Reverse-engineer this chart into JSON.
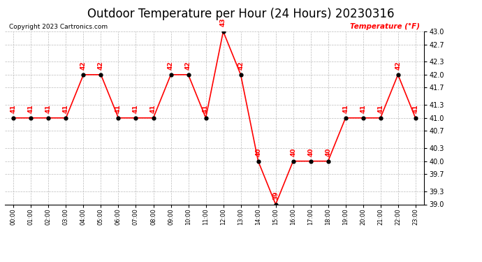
{
  "title": "Outdoor Temperature per Hour (24 Hours) 20230316",
  "copyright_text": "Copyright 2023 Cartronics.com",
  "legend_label": "Temperature (°F)",
  "hours": [
    0,
    1,
    2,
    3,
    4,
    5,
    6,
    7,
    8,
    9,
    10,
    11,
    12,
    13,
    14,
    15,
    16,
    17,
    18,
    19,
    20,
    21,
    22,
    23
  ],
  "temps": [
    41,
    41,
    41,
    41,
    42,
    42,
    41,
    41,
    41,
    42,
    42,
    41,
    43,
    42,
    40,
    39,
    40,
    40,
    40,
    41,
    41,
    41,
    42,
    41
  ],
  "xlabels": [
    "00:00",
    "01:00",
    "02:00",
    "03:00",
    "04:00",
    "05:00",
    "06:00",
    "07:00",
    "08:00",
    "09:00",
    "10:00",
    "11:00",
    "12:00",
    "13:00",
    "14:00",
    "15:00",
    "16:00",
    "17:00",
    "18:00",
    "19:00",
    "20:00",
    "21:00",
    "22:00",
    "23:00"
  ],
  "ylim": [
    39.0,
    43.0
  ],
  "yticks": [
    39.0,
    39.3,
    39.7,
    40.0,
    40.3,
    40.7,
    41.0,
    41.3,
    41.7,
    42.0,
    42.3,
    42.7,
    43.0
  ],
  "line_color": "red",
  "marker_color": "black",
  "label_color": "red",
  "title_fontsize": 12,
  "background_color": "white",
  "grid_color": "#bbbbbb"
}
